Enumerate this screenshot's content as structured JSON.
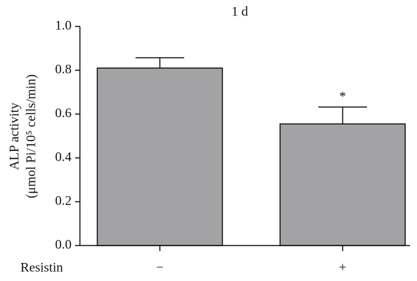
{
  "chart_data": {
    "type": "bar",
    "title": "1 d",
    "y_label": [
      "ALP activity",
      "(μmol Pi/10⁵ cells/min)"
    ],
    "x_label": "Resistin",
    "categories": [
      "−",
      "+"
    ],
    "values": [
      0.81,
      0.555
    ],
    "errors": [
      0.047,
      0.077
    ],
    "annotations": [
      "",
      "*"
    ],
    "color": "#a3a3a6",
    "ylim": [
      0,
      1.0
    ],
    "yticks": [
      {
        "value": 0,
        "label": "0.0"
      },
      0.2,
      0.4,
      0.6,
      0.8,
      {
        "value": 1,
        "label": "1.0"
      }
    ]
  }
}
